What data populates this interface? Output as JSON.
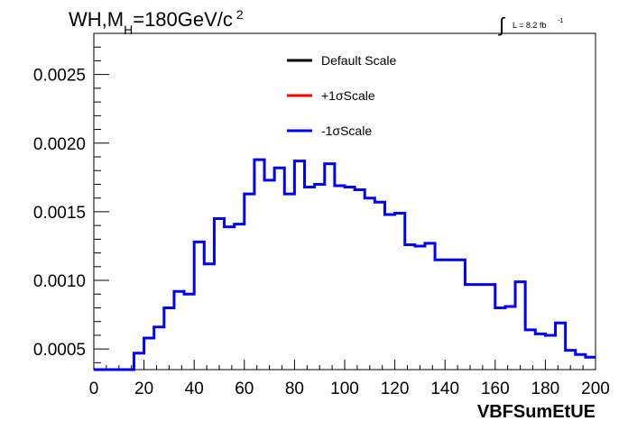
{
  "title": {
    "prefix": "WH,M",
    "subscript": "H",
    "suffix": "=180GeV/c",
    "superscript": "2"
  },
  "luminosity": {
    "symbol": "∫",
    "label": "L = 8.2 fb",
    "exponent": "-1"
  },
  "chart_data": {
    "type": "line",
    "xlabel": "VBFSumEtUE",
    "ylabel": "",
    "xlim": [
      0,
      200
    ],
    "ylim": [
      0.00035,
      0.0028
    ],
    "x_ticks": [
      "0",
      "20",
      "40",
      "60",
      "80",
      "100",
      "120",
      "140",
      "160",
      "180",
      "200"
    ],
    "y_ticks": [
      "0.0005",
      "0.0010",
      "0.0015",
      "0.0020",
      "0.0025"
    ],
    "bin_width": 4,
    "bin_low_edges": [
      0,
      4,
      8,
      12,
      16,
      20,
      24,
      28,
      32,
      36,
      40,
      44,
      48,
      52,
      56,
      60,
      64,
      68,
      72,
      76,
      80,
      84,
      88,
      92,
      96,
      100,
      104,
      108,
      112,
      116,
      120,
      124,
      128,
      132,
      136,
      140,
      144,
      148,
      152,
      156,
      160,
      164,
      168,
      172,
      176,
      180,
      184,
      188,
      192,
      196
    ],
    "legend": {
      "position": "top-center",
      "entries": [
        {
          "label": "Default Scale",
          "color": "#000000"
        },
        {
          "label": "+1σScale",
          "color": "#ff0000"
        },
        {
          "label": "-1σScale",
          "color": "#0000ff"
        }
      ]
    },
    "series": [
      {
        "name": "-1σScale",
        "color": "#0000ff",
        "values": [
          0.00035,
          0.00035,
          0.00035,
          0.00035,
          0.00047,
          0.00058,
          0.00066,
          0.0008,
          0.00092,
          0.0009,
          0.00128,
          0.00112,
          0.00145,
          0.00139,
          0.00141,
          0.00163,
          0.00188,
          0.00173,
          0.00182,
          0.00163,
          0.00187,
          0.00168,
          0.0017,
          0.00185,
          0.00169,
          0.00168,
          0.00166,
          0.0016,
          0.00157,
          0.00148,
          0.00149,
          0.00126,
          0.00125,
          0.00127,
          0.00115,
          0.00115,
          0.00115,
          0.00097,
          0.00097,
          0.00097,
          0.0008,
          0.00081,
          0.00099,
          0.00064,
          0.00061,
          0.0006,
          0.00069,
          0.00049,
          0.00046,
          0.00044
        ]
      }
    ]
  }
}
